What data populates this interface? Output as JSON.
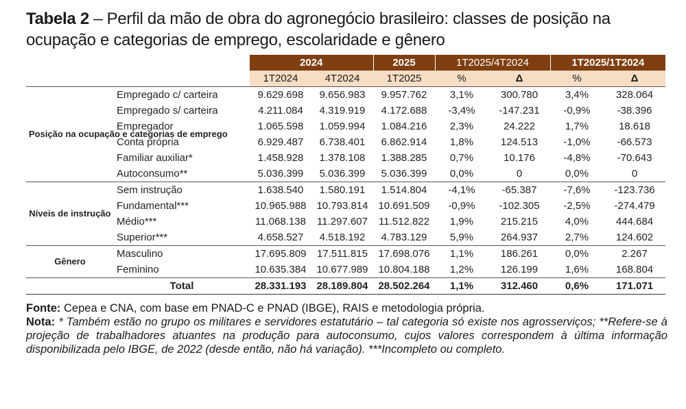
{
  "title": {
    "label": "Tabela 2",
    "text": "– Perfil da mão de obra do agronegócio brasileiro: classes de posição na ocupação e categorias de emprego, escolaridade e gênero"
  },
  "header": {
    "row1": [
      "2024",
      "2025",
      "1T2025/4T2024",
      "1T2025/1T2024"
    ],
    "row2": [
      "1T2024",
      "4T2024",
      "1T2025",
      "%",
      "Δ",
      "%",
      "Δ"
    ]
  },
  "groups": [
    {
      "name": "Posição na ocupação e categorias de emprego",
      "rows": [
        {
          "label": "Empregado c/ carteira",
          "v": [
            "9.629.698",
            "9.656.983",
            "9.957.762",
            "3,1%",
            "300.780",
            "3,4%",
            "328.064"
          ]
        },
        {
          "label": "Empregado s/ carteira",
          "v": [
            "4.211.084",
            "4.319.919",
            "4.172.688",
            "-3,4%",
            "-147.231",
            "-0,9%",
            "-38.396"
          ]
        },
        {
          "label": "Empregador",
          "v": [
            "1.065.598",
            "1.059.994",
            "1.084.216",
            "2,3%",
            "24.222",
            "1,7%",
            "18.618"
          ]
        },
        {
          "label": "Conta própria",
          "v": [
            "6.929.487",
            "6.738.401",
            "6.862.914",
            "1,8%",
            "124.513",
            "-1,0%",
            "-66.573"
          ]
        },
        {
          "label": "Familiar auxiliar*",
          "v": [
            "1.458.928",
            "1.378.108",
            "1.388.285",
            "0,7%",
            "10.176",
            "-4,8%",
            "-70.643"
          ]
        },
        {
          "label": "Autoconsumo**",
          "v": [
            "5.036.399",
            "5.036.399",
            "5.036.399",
            "0,0%",
            "0",
            "0,0%",
            "0"
          ]
        }
      ]
    },
    {
      "name": "Níveis de instrução",
      "rows": [
        {
          "label": "Sem instrução",
          "v": [
            "1.638.540",
            "1.580.191",
            "1.514.804",
            "-4,1%",
            "-65.387",
            "-7,6%",
            "-123.736"
          ]
        },
        {
          "label": "Fundamental***",
          "v": [
            "10.965.988",
            "10.793.814",
            "10.691.509",
            "-0,9%",
            "-102.305",
            "-2,5%",
            "-274.479"
          ]
        },
        {
          "label": "Médio***",
          "v": [
            "11.068.138",
            "11.297.607",
            "11.512.822",
            "1,9%",
            "215.215",
            "4,0%",
            "444.684"
          ]
        },
        {
          "label": "Superior***",
          "v": [
            "4.658.527",
            "4.518.192",
            "4.783.129",
            "5,9%",
            "264.937",
            "2,7%",
            "124.602"
          ]
        }
      ]
    },
    {
      "name": "Gênero",
      "rows": [
        {
          "label": "Masculino",
          "v": [
            "17.695.809",
            "17.511.815",
            "17.698.076",
            "1,1%",
            "186.261",
            "0,0%",
            "2.267"
          ]
        },
        {
          "label": "Feminino",
          "v": [
            "10.635.384",
            "10.677.989",
            "10.804.188",
            "1,2%",
            "126.199",
            "1,6%",
            "168.804"
          ]
        }
      ]
    }
  ],
  "total": {
    "label": "Total",
    "v": [
      "28.331.193",
      "28.189.804",
      "28.502.264",
      "1,1%",
      "312.460",
      "0,6%",
      "171.071"
    ]
  },
  "fonte": {
    "label": "Fonte:",
    "text": "Cepea e CNA, com base em PNAD-C e PNAD (IBGE), RAIS e metodologia própria."
  },
  "nota": {
    "label": "Nota:",
    "text": "* Também estão no grupo os militares e servidores estatutário – tal categoria só existe nos agrosserviços; **Refere-se à projeção de trabalhadores atuantes na produção para autoconsumo, cujos valores correspondem à última informação disponibilizada pelo IBGE, de 2022 (desde então, não há variação). ***Incompleto ou completo."
  }
}
